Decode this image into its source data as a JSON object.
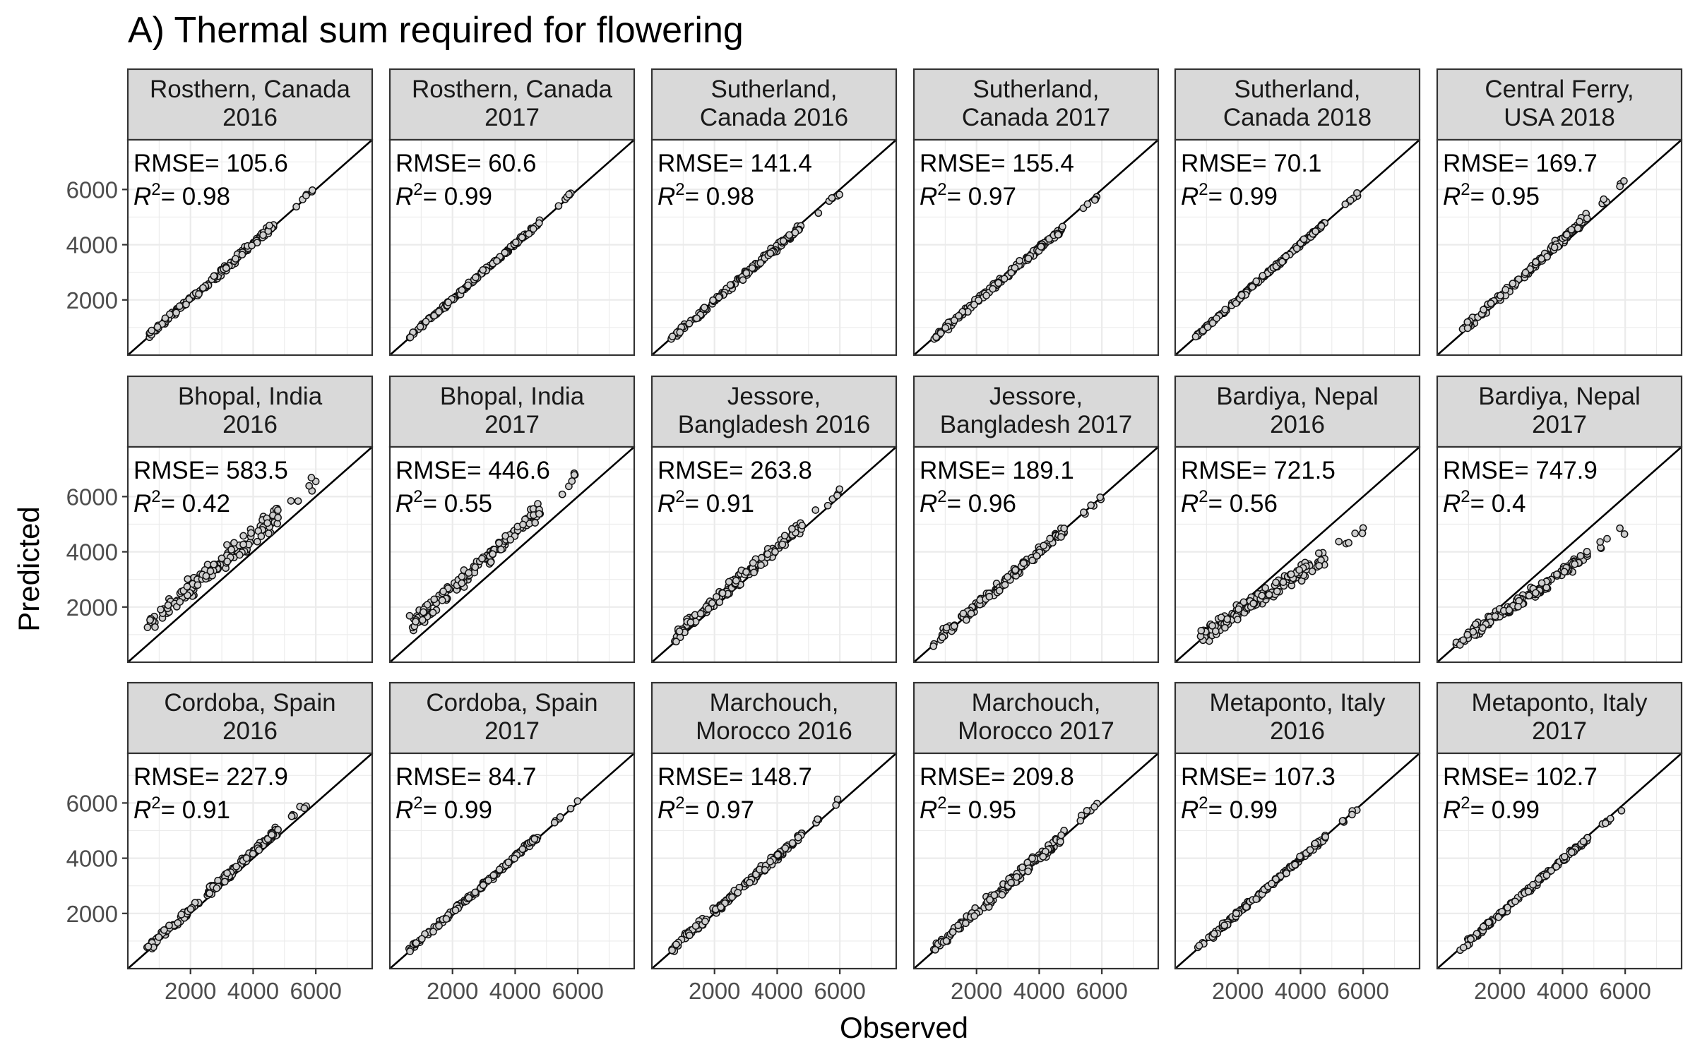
{
  "chart_data": {
    "type": "scatter",
    "title": "A) Thermal sum required for flowering",
    "xlabel": "Observed",
    "ylabel": "Predicted",
    "xlim": [
      0,
      7800
    ],
    "ylim": [
      0,
      7800
    ],
    "x_ticks": [
      2000,
      4000,
      6000
    ],
    "y_ticks": [
      2000,
      4000,
      6000
    ],
    "x_tick_labels": [
      "2000",
      "4000",
      "6000"
    ],
    "y_tick_labels": [
      "2000",
      "4000",
      "6000"
    ],
    "grid": true,
    "reference_line": "y = x",
    "stat_labels": {
      "rmse": "RMSE=",
      "r2_base": "R",
      "r2_sup": "2",
      "r2_eq": "= "
    },
    "panels": [
      {
        "strip": [
          "Rosthern, Canada",
          "2016"
        ],
        "rmse": "105.6",
        "r2": "0.98",
        "model": {
          "a": 40,
          "b": 1.0,
          "noise": 110
        }
      },
      {
        "strip": [
          "Rosthern, Canada",
          "2017"
        ],
        "rmse": "60.6",
        "r2": "0.99",
        "model": {
          "a": 30,
          "b": 1.0,
          "noise": 70
        }
      },
      {
        "strip": [
          "Sutherland,",
          "Canada 2016"
        ],
        "rmse": "141.4",
        "r2": "0.98",
        "model": {
          "a": 0,
          "b": 0.98,
          "noise": 110
        }
      },
      {
        "strip": [
          "Sutherland,",
          "Canada 2017"
        ],
        "rmse": "155.4",
        "r2": "0.97",
        "model": {
          "a": 0,
          "b": 0.97,
          "noise": 120
        }
      },
      {
        "strip": [
          "Sutherland,",
          "Canada 2018"
        ],
        "rmse": "70.1",
        "r2": "0.99",
        "model": {
          "a": 20,
          "b": 1.0,
          "noise": 70
        }
      },
      {
        "strip": [
          "Central Ferry,",
          "USA 2018"
        ],
        "rmse": "169.7",
        "r2": "0.95",
        "model": {
          "a": 60,
          "b": 1.03,
          "noise": 170
        }
      },
      {
        "strip": [
          "Bhopal, India",
          "2016"
        ],
        "rmse": "583.5",
        "r2": "0.42",
        "model": {
          "a": 800,
          "b": 0.95,
          "noise": 380
        }
      },
      {
        "strip": [
          "Bhopal, India",
          "2017"
        ],
        "rmse": "446.6",
        "r2": "0.55",
        "model": {
          "a": 650,
          "b": 1.02,
          "noise": 330
        }
      },
      {
        "strip": [
          "Jessore,",
          "Bangladesh 2016"
        ],
        "rmse": "263.8",
        "r2": "0.91",
        "model": {
          "a": 250,
          "b": 0.98,
          "noise": 220
        }
      },
      {
        "strip": [
          "Jessore,",
          "Bangladesh 2017"
        ],
        "rmse": "189.1",
        "r2": "0.96",
        "model": {
          "a": 120,
          "b": 0.97,
          "noise": 170
        }
      },
      {
        "strip": [
          "Bardiya, Nepal",
          "2016"
        ],
        "rmse": "721.5",
        "r2": "0.56",
        "model": {
          "a": 350,
          "b": 0.72,
          "noise": 260
        }
      },
      {
        "strip": [
          "Bardiya, Nepal",
          "2017"
        ],
        "rmse": "747.9",
        "r2": "0.4",
        "model": {
          "a": 150,
          "b": 0.78,
          "noise": 230
        }
      },
      {
        "strip": [
          "Cordoba, Spain",
          "2016"
        ],
        "rmse": "227.9",
        "r2": "0.91",
        "model": {
          "a": 100,
          "b": 1.03,
          "noise": 150
        }
      },
      {
        "strip": [
          "Cordoba, Spain",
          "2017"
        ],
        "rmse": "84.7",
        "r2": "0.99",
        "model": {
          "a": 50,
          "b": 1.0,
          "noise": 90
        }
      },
      {
        "strip": [
          "Marchouch,",
          "Morocco 2016"
        ],
        "rmse": "148.7",
        "r2": "0.97",
        "model": {
          "a": 80,
          "b": 1.0,
          "noise": 140
        }
      },
      {
        "strip": [
          "Marchouch,",
          "Morocco 2017"
        ],
        "rmse": "209.8",
        "r2": "0.95",
        "model": {
          "a": 60,
          "b": 1.0,
          "noise": 180
        }
      },
      {
        "strip": [
          "Metaponto, Italy",
          "2016"
        ],
        "rmse": "107.3",
        "r2": "0.99",
        "model": {
          "a": 20,
          "b": 0.99,
          "noise": 90
        }
      },
      {
        "strip": [
          "Metaponto, Italy",
          "2017"
        ],
        "rmse": "102.7",
        "r2": "0.99",
        "model": {
          "a": 0,
          "b": 0.98,
          "noise": 90
        }
      }
    ]
  }
}
